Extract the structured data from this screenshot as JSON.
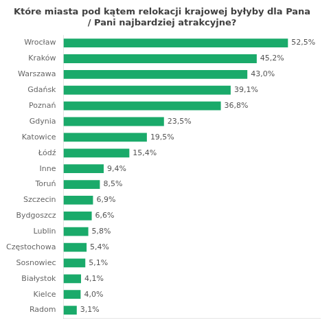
{
  "chart_data": {
    "type": "bar",
    "orientation": "horizontal",
    "title": "Które miasta pod kątem relokacji krajowej byłyby dla Pana\n/ Pani najbardziej atrakcyjne?",
    "categories": [
      "Wrocław",
      "Kraków",
      "Warszawa",
      "Gdańsk",
      "Poznań",
      "Gdynia",
      "Katowice",
      "Łódź",
      "Inne",
      "Toruń",
      "Szczecin",
      "Bydgoszcz",
      "Lublin",
      "Częstochowa",
      "Sosnowiec",
      "Białystok",
      "Kielce",
      "Radom"
    ],
    "values": [
      52.5,
      45.2,
      43.0,
      39.1,
      36.8,
      23.5,
      19.5,
      15.4,
      9.4,
      8.5,
      6.9,
      6.6,
      5.8,
      5.4,
      5.1,
      4.1,
      4.0,
      3.1
    ],
    "value_labels": [
      "52,5%",
      "45,2%",
      "43,0%",
      "39,1%",
      "36,8%",
      "23,5%",
      "19,5%",
      "15,4%",
      "9,4%",
      "8,5%",
      "6,9%",
      "6,6%",
      "5,8%",
      "5,4%",
      "5,1%",
      "4,1%",
      "4,0%",
      "3,1%"
    ],
    "data_labels": true,
    "color": "#1aaa6a",
    "xlim": [
      0,
      60
    ],
    "tick_labels": "y",
    "grid": false
  }
}
